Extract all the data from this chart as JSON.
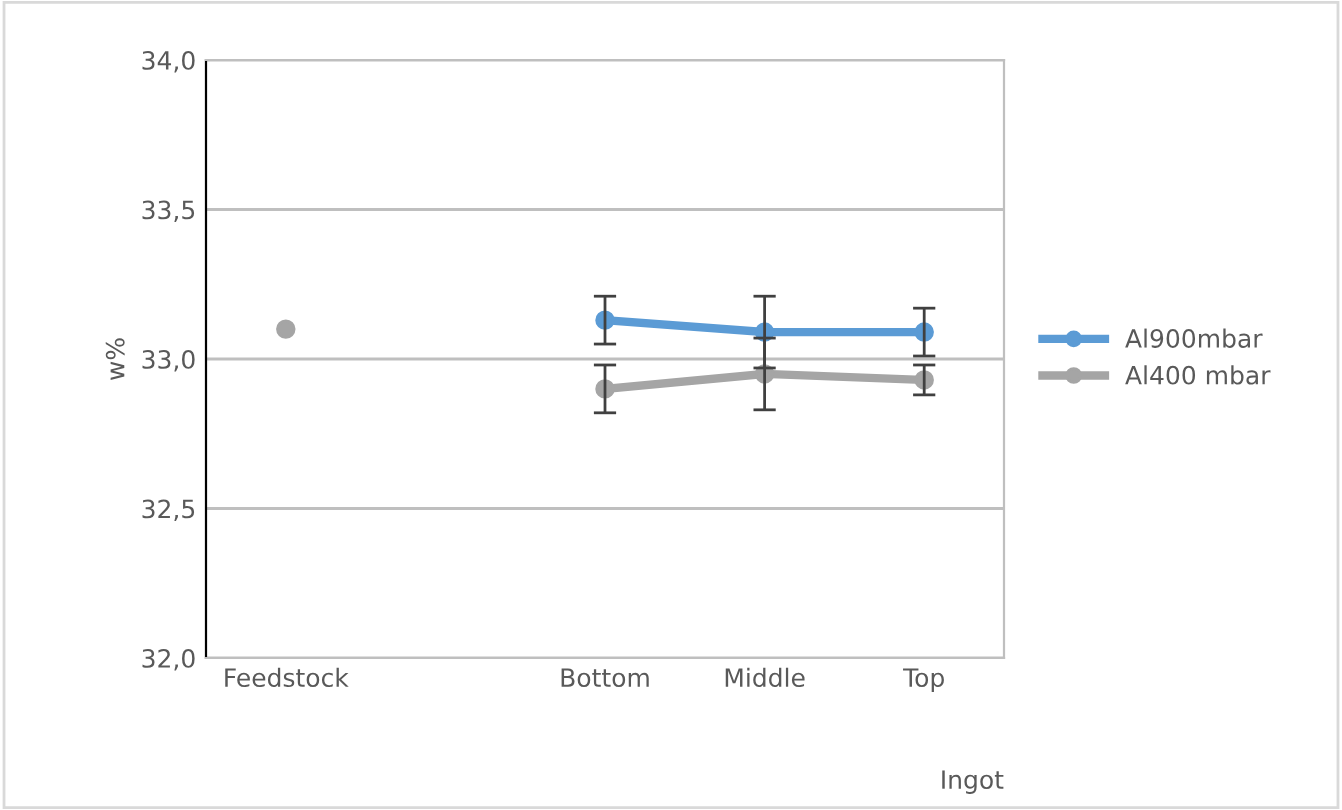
{
  "chart_data": {
    "type": "line",
    "xlabel": "Ingot",
    "ylabel": "w%",
    "categories": [
      "Feedstock",
      null,
      "Bottom",
      "Middle",
      "Top"
    ],
    "series": [
      {
        "name": "Al900mbar",
        "color": "#5b9bd5",
        "values": [
          null,
          null,
          33.13,
          33.09,
          33.09
        ],
        "errors": [
          null,
          null,
          0.08,
          0.12,
          0.08
        ]
      },
      {
        "name": "Al400 mbar",
        "color": "#a5a5a5",
        "values": [
          33.1,
          null,
          32.9,
          32.95,
          32.93
        ],
        "errors": [
          null,
          null,
          0.08,
          0.12,
          0.05
        ]
      }
    ],
    "ylim": [
      32.0,
      34.0
    ],
    "yticks": [
      {
        "value": 32.0,
        "label": "32,0"
      },
      {
        "value": 32.5,
        "label": "32,5"
      },
      {
        "value": 33.0,
        "label": "33,0"
      },
      {
        "value": 33.5,
        "label": "33,5"
      },
      {
        "value": 34.0,
        "label": "34,0"
      }
    ],
    "grid": "y",
    "legend": "right",
    "marker": "circle",
    "line_style": "solid"
  }
}
